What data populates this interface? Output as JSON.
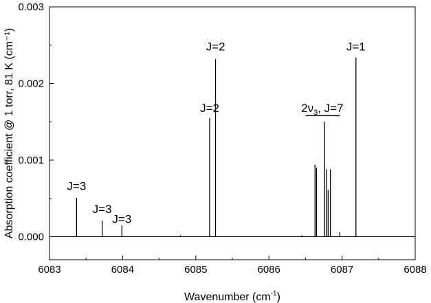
{
  "chart_data": {
    "type": "line",
    "title": "",
    "xlabel_main": "Wavenumber (cm",
    "xlabel_sup": "-1",
    "xlabel_close": ")",
    "ylabel": "Absorption coefficient @ 1 torr, 81 K (cm⁻¹)",
    "xlim": [
      6083,
      6088
    ],
    "ylim": [
      -0.0003,
      0.003
    ],
    "xticks": [
      6083,
      6084,
      6085,
      6086,
      6087,
      6088
    ],
    "xtick_labels": [
      "6083",
      "6084",
      "6085",
      "6086",
      "6087",
      "6088"
    ],
    "yticks": [
      0.0,
      0.001,
      0.002,
      0.003
    ],
    "ytick_labels": [
      "0.000",
      "0.001",
      "0.002",
      "0.003"
    ],
    "grid": false,
    "series_color": "#000000",
    "peaks": [
      {
        "x": 6083.37,
        "y": 0.00051
      },
      {
        "x": 6083.72,
        "y": 0.00021
      },
      {
        "x": 6083.99,
        "y": 0.00015
      },
      {
        "x": 6084.79,
        "y": 2e-05
      },
      {
        "x": 6085.19,
        "y": 0.00155
      },
      {
        "x": 6085.27,
        "y": 0.00232
      },
      {
        "x": 6086.45,
        "y": 2e-05
      },
      {
        "x": 6086.63,
        "y": 0.00094
      },
      {
        "x": 6086.65,
        "y": 0.0009
      },
      {
        "x": 6086.76,
        "y": 0.0015
      },
      {
        "x": 6086.79,
        "y": 0.00088
      },
      {
        "x": 6086.81,
        "y": 0.00061
      },
      {
        "x": 6086.84,
        "y": 0.00088
      },
      {
        "x": 6086.97,
        "y": 6e-05
      },
      {
        "x": 6087.19,
        "y": 0.00234
      }
    ],
    "annotations": [
      {
        "text": "J=3",
        "x": 6083.37,
        "y": 0.00061
      },
      {
        "text": "J=3",
        "x": 6083.72,
        "y": 0.00031
      },
      {
        "text": "J=3",
        "x": 6083.99,
        "y": 0.00018
      },
      {
        "text": "J=2",
        "x": 6085.19,
        "y": 0.00163
      },
      {
        "text": "J=2",
        "x": 6085.27,
        "y": 0.00243
      },
      {
        "text": "J=1",
        "x": 6087.19,
        "y": 0.00243
      }
    ],
    "band_label": {
      "prefix": "2ν",
      "subscript": "3",
      "suffix": ", J=7",
      "x_center": 6086.73,
      "y": 0.00163,
      "bar_x": [
        6086.5,
        6086.97
      ],
      "bar_y": 0.00158
    }
  }
}
